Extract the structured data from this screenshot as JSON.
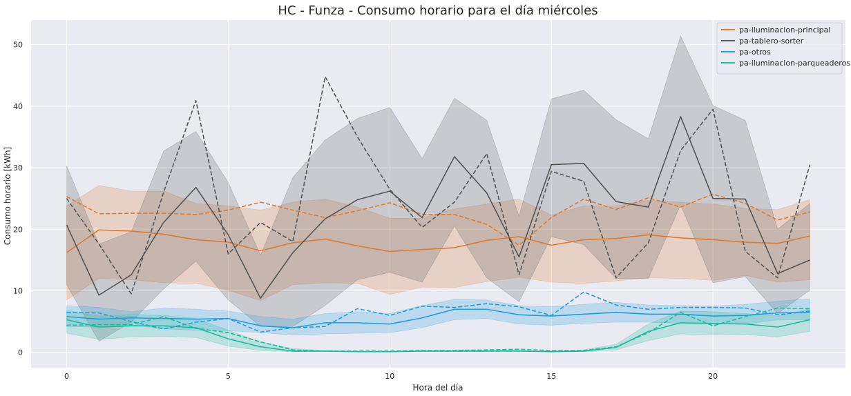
{
  "chart_data": {
    "type": "line",
    "title": "HC - Funza - Consumo horario para el día miércoles",
    "xlabel": "Hora del día",
    "ylabel": "Consumo horario [kWh]",
    "xlim": [
      -1.1,
      24.1
    ],
    "ylim": [
      -2.5,
      54
    ],
    "xticks": [
      0,
      5,
      10,
      15,
      20
    ],
    "yticks": [
      0,
      10,
      20,
      30,
      40,
      50
    ],
    "grid": true,
    "legend_position": "top-right",
    "x": [
      0,
      1,
      2,
      3,
      4,
      5,
      6,
      7,
      8,
      9,
      10,
      11,
      12,
      13,
      14,
      15,
      16,
      17,
      18,
      19,
      20,
      21,
      22,
      23
    ],
    "series": [
      {
        "name": "pa-iluminacion-principal",
        "color": "#e07a2e",
        "mean": [
          16.2,
          19.9,
          19.7,
          19.2,
          18.3,
          17.9,
          16.5,
          17.8,
          18.4,
          17.3,
          16.4,
          16.7,
          17.0,
          18.2,
          18.8,
          17.4,
          18.3,
          18.5,
          19.1,
          18.6,
          18.3,
          17.9,
          17.7,
          18.9
        ],
        "lower": [
          8.5,
          12.0,
          11.8,
          11.3,
          11.2,
          10.1,
          8.4,
          11.0,
          11.3,
          11.2,
          9.4,
          10.6,
          10.5,
          11.5,
          12.2,
          11.4,
          11.2,
          11.6,
          12.1,
          12.0,
          11.7,
          12.5,
          11.4,
          11.8
        ],
        "upper": [
          23.8,
          27.1,
          26.2,
          26.2,
          24.2,
          23.8,
          23.1,
          24.4,
          24.9,
          23.6,
          21.8,
          21.8,
          23.3,
          24.1,
          24.9,
          22.3,
          23.8,
          23.8,
          24.7,
          24.4,
          24.1,
          23.4,
          23.2,
          24.8
        ],
        "dashed": [
          25.3,
          22.5,
          22.6,
          22.6,
          22.4,
          23.1,
          24.4,
          23.1,
          21.9,
          23.0,
          24.3,
          22.4,
          22.4,
          20.8,
          17.4,
          21.9,
          24.9,
          23.2,
          25.1,
          23.6,
          25.7,
          24.2,
          21.5,
          22.8
        ]
      },
      {
        "name": "pa-tablero-sorter",
        "color": "#555555",
        "mean": [
          20.7,
          9.3,
          12.6,
          21.1,
          26.8,
          19.1,
          8.8,
          16.2,
          21.7,
          24.8,
          26.2,
          21.9,
          31.8,
          25.9,
          15.5,
          30.5,
          30.7,
          24.5,
          23.6,
          38.3,
          25.0,
          24.9,
          12.8,
          15.0
        ],
        "lower": [
          11.0,
          1.8,
          4.9,
          10.3,
          14.8,
          8.5,
          4.2,
          4.2,
          7.6,
          11.8,
          13.0,
          11.4,
          20.5,
          12.1,
          8.2,
          18.8,
          17.5,
          12.0,
          12.0,
          24.0,
          11.3,
          12.3,
          6.3,
          10.1
        ],
        "upper": [
          30.3,
          17.6,
          19.6,
          32.7,
          35.9,
          27.6,
          15.8,
          28.4,
          34.5,
          38.0,
          39.8,
          31.5,
          41.3,
          37.7,
          22.1,
          41.2,
          42.6,
          37.8,
          34.7,
          51.4,
          40.1,
          37.7,
          20.0,
          24.2
        ],
        "dashed": [
          25.0,
          17.6,
          9.5,
          26.0,
          40.9,
          16.0,
          21.1,
          18.0,
          44.8,
          35.0,
          26.5,
          20.3,
          24.4,
          32.3,
          12.6,
          29.4,
          27.8,
          12.1,
          17.8,
          32.8,
          39.5,
          16.4,
          12.1,
          30.5
        ]
      },
      {
        "name": "pa-otros",
        "color": "#1f9ee0",
        "mean": [
          5.8,
          5.4,
          5.6,
          5.5,
          5.4,
          5.5,
          4.3,
          4.0,
          4.8,
          4.8,
          4.6,
          5.6,
          7.0,
          7.0,
          6.1,
          5.9,
          6.2,
          6.5,
          6.2,
          6.2,
          5.9,
          6.0,
          6.4,
          6.5
        ],
        "lower": [
          4.2,
          4.1,
          4.5,
          3.8,
          3.6,
          3.5,
          3.2,
          2.8,
          3.0,
          3.1,
          3.2,
          4.0,
          5.3,
          5.5,
          4.6,
          4.4,
          4.7,
          4.9,
          4.9,
          4.7,
          4.6,
          4.6,
          5.3,
          5.3
        ],
        "upper": [
          7.6,
          7.3,
          6.6,
          7.2,
          7.0,
          6.7,
          5.8,
          5.4,
          6.3,
          6.6,
          6.3,
          7.6,
          8.6,
          8.5,
          7.6,
          7.4,
          7.8,
          8.1,
          7.7,
          7.6,
          7.5,
          7.8,
          8.3,
          8.7
        ],
        "dashed": [
          6.5,
          6.4,
          5.0,
          3.8,
          4.9,
          5.5,
          3.3,
          4.0,
          4.2,
          7.1,
          6.0,
          7.5,
          7.3,
          7.9,
          7.4,
          6.0,
          9.8,
          7.7,
          7.0,
          7.3,
          7.3,
          7.2,
          6.1,
          6.7
        ]
      },
      {
        "name": "pa-iluminacion-parqueaderos",
        "color": "#1abc9c",
        "mean": [
          5.3,
          4.1,
          4.3,
          4.3,
          4.0,
          2.2,
          0.9,
          0.2,
          0.2,
          0.1,
          0.1,
          0.2,
          0.2,
          0.2,
          0.2,
          0.1,
          0.2,
          0.8,
          3.4,
          4.8,
          4.7,
          4.6,
          4.1,
          5.3
        ],
        "lower": [
          3.1,
          2.1,
          2.5,
          2.6,
          2.4,
          1.0,
          0.3,
          0.1,
          0.1,
          0.1,
          0.1,
          0.1,
          0.1,
          0.1,
          0.1,
          0.1,
          0.1,
          0.4,
          1.9,
          3.0,
          2.8,
          2.9,
          2.5,
          3.4
        ],
        "upper": [
          6.8,
          5.9,
          6.1,
          6.0,
          5.5,
          3.6,
          1.7,
          0.6,
          0.3,
          0.2,
          0.2,
          0.3,
          0.3,
          0.3,
          0.4,
          0.3,
          0.4,
          1.3,
          4.6,
          6.7,
          6.6,
          6.3,
          5.9,
          7.1
        ],
        "dashed": [
          4.4,
          4.5,
          4.5,
          5.8,
          3.9,
          3.2,
          1.7,
          0.4,
          0.2,
          0.2,
          0.2,
          0.3,
          0.3,
          0.4,
          0.5,
          0.3,
          0.3,
          0.9,
          3.2,
          6.5,
          4.3,
          5.8,
          7.2,
          7.1
        ]
      }
    ]
  }
}
